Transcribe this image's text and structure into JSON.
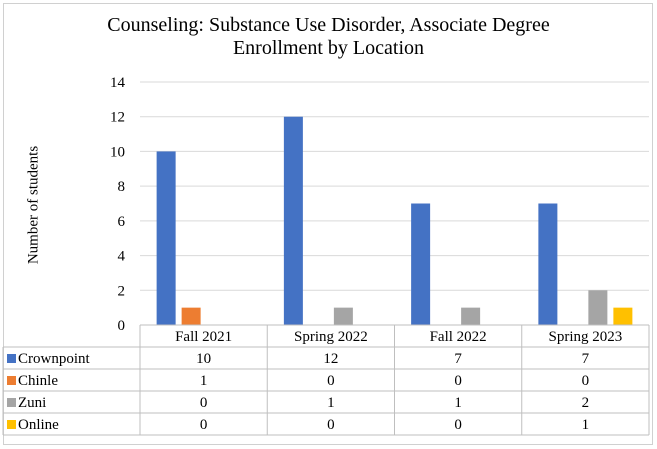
{
  "chart_data": {
    "type": "bar",
    "title_lines": [
      "Counseling: Substance Use Disorder, Associate Degree",
      "Enrollment by Location"
    ],
    "ylabel": "Number of students",
    "xlabel": "",
    "categories": [
      "Fall 2021",
      "Spring 2022",
      "Fall 2022",
      "Spring 2023"
    ],
    "ylim": [
      0,
      14
    ],
    "yticks": [
      "0",
      "2",
      "4",
      "6",
      "8",
      "10",
      "12",
      "14"
    ],
    "grid": true,
    "legend": "data-table",
    "series": [
      {
        "name": "Crownpoint",
        "color": "#4472C4",
        "values": [
          10,
          12,
          7,
          7
        ]
      },
      {
        "name": "Chinle",
        "color": "#ED7D31",
        "values": [
          1,
          0,
          0,
          0
        ]
      },
      {
        "name": "Zuni",
        "color": "#A5A5A5",
        "values": [
          0,
          1,
          1,
          2
        ]
      },
      {
        "name": "Online",
        "color": "#FFC000",
        "values": [
          0,
          0,
          0,
          1
        ]
      }
    ]
  }
}
